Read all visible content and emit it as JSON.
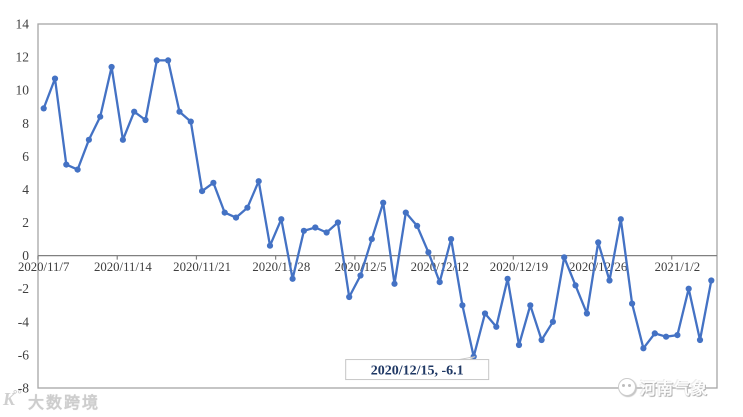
{
  "chart_data": {
    "type": "line",
    "title": "",
    "legend": "none",
    "grid": false,
    "line_color": "#4472C4",
    "marker": "circle",
    "ylim": [
      -8,
      14
    ],
    "y_ticks": [
      14,
      12,
      10,
      8,
      6,
      4,
      2,
      0,
      -2,
      -4,
      -6,
      -8
    ],
    "x_tick_indices": [
      0,
      7,
      14,
      21,
      28,
      35,
      42,
      49,
      56
    ],
    "x_tick_labels": [
      "2020/11/7",
      "2020/11/14",
      "2020/11/21",
      "2020/11/28",
      "2020/12/5",
      "2020/12/12",
      "2020/12/19",
      "2020/12/26",
      "2021/1/2"
    ],
    "x": [
      "2020/11/7",
      "2020/11/8",
      "2020/11/9",
      "2020/11/10",
      "2020/11/11",
      "2020/11/12",
      "2020/11/13",
      "2020/11/14",
      "2020/11/15",
      "2020/11/16",
      "2020/11/17",
      "2020/11/18",
      "2020/11/19",
      "2020/11/20",
      "2020/11/21",
      "2020/11/22",
      "2020/11/23",
      "2020/11/24",
      "2020/11/25",
      "2020/11/26",
      "2020/11/27",
      "2020/11/28",
      "2020/11/29",
      "2020/11/30",
      "2020/12/1",
      "2020/12/2",
      "2020/12/3",
      "2020/12/4",
      "2020/12/5",
      "2020/12/6",
      "2020/12/7",
      "2020/12/8",
      "2020/12/9",
      "2020/12/10",
      "2020/12/11",
      "2020/12/12",
      "2020/12/13",
      "2020/12/14",
      "2020/12/15",
      "2020/12/16",
      "2020/12/17",
      "2020/12/18",
      "2020/12/19",
      "2020/12/20",
      "2020/12/21",
      "2020/12/22",
      "2020/12/23",
      "2020/12/24",
      "2020/12/25",
      "2020/12/26",
      "2020/12/27",
      "2020/12/28",
      "2020/12/29",
      "2020/12/30",
      "2020/12/31",
      "2021/1/1",
      "2021/1/2",
      "2021/1/3",
      "2021/1/4",
      "2021/1/5"
    ],
    "values": [
      8.9,
      10.7,
      5.5,
      5.2,
      7.0,
      8.4,
      11.4,
      7.0,
      8.7,
      8.2,
      11.8,
      11.8,
      8.7,
      8.1,
      3.9,
      4.4,
      2.6,
      2.3,
      2.9,
      4.5,
      0.6,
      2.2,
      -1.4,
      1.5,
      1.7,
      1.4,
      2.0,
      -2.5,
      -1.2,
      1.0,
      3.2,
      -1.7,
      2.6,
      1.8,
      0.2,
      -1.6,
      1.0,
      -3.0,
      -6.1,
      -3.5,
      -4.3,
      -1.4,
      -5.4,
      -3.0,
      -5.1,
      -4.0,
      -0.1,
      -1.8,
      -3.5,
      0.8,
      -1.5,
      2.2,
      -2.9,
      -5.6,
      -4.7,
      -4.9,
      -4.8,
      -2.0,
      -5.1,
      -1.5
    ],
    "annotation": {
      "label": "2020/12/15, -6.1",
      "date": "2020/12/15",
      "value": -6.1,
      "index": 38,
      "text_color": "#1F3864",
      "box_fill": "#FFFFFF",
      "box_border": "#C6C6C6"
    }
  },
  "colors": {
    "background": "#FFFFFF",
    "plot_border": "#A6A6A6",
    "zero_axis_line": "#808080",
    "tick_label": "#3F3F3F"
  },
  "watermarks": {
    "bottom_left": "大数跨境",
    "bottom_right": "河南气象"
  }
}
